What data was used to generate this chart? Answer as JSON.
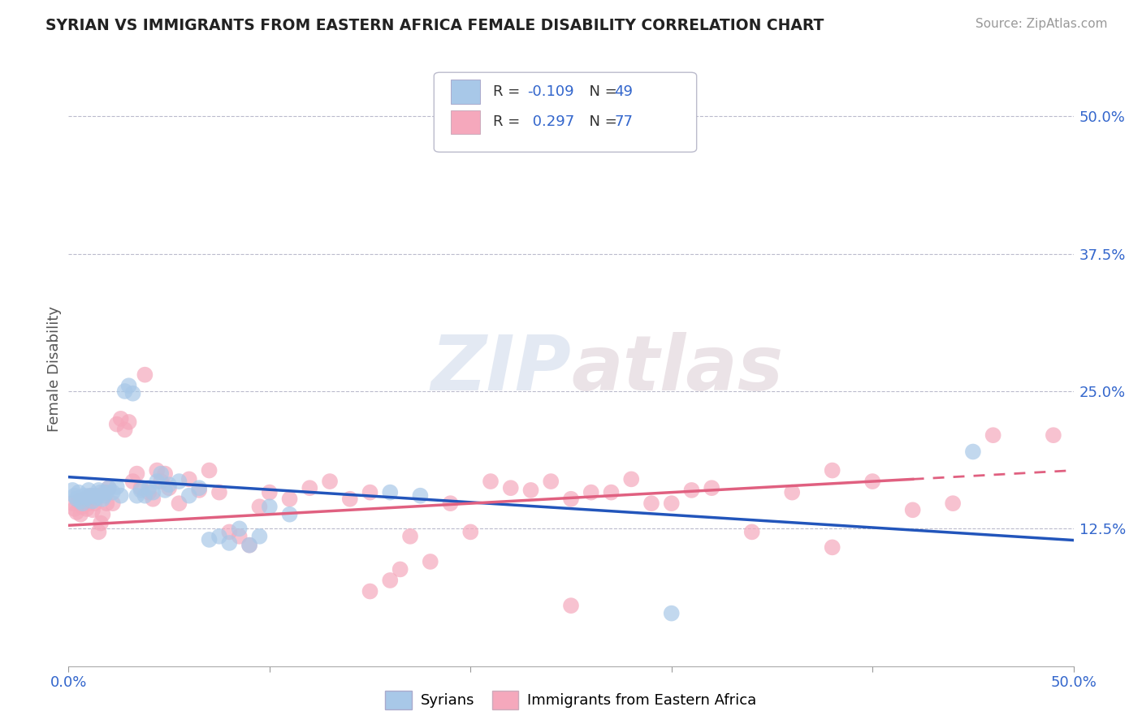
{
  "title": "SYRIAN VS IMMIGRANTS FROM EASTERN AFRICA FEMALE DISABILITY CORRELATION CHART",
  "source": "Source: ZipAtlas.com",
  "ylabel": "Female Disability",
  "xlim": [
    0.0,
    0.5
  ],
  "ylim": [
    0.0,
    0.54
  ],
  "xticks": [
    0.0,
    0.1,
    0.2,
    0.3,
    0.4,
    0.5
  ],
  "xticklabels": [
    "0.0%",
    "",
    "",
    "",
    "",
    "50.0%"
  ],
  "ytick_labels_right": [
    "50.0%",
    "37.5%",
    "25.0%",
    "12.5%"
  ],
  "ytick_vals_right": [
    0.5,
    0.375,
    0.25,
    0.125
  ],
  "syrian_color": "#a8c8e8",
  "eastern_africa_color": "#f5a8bc",
  "syrian_line_color": "#2255bb",
  "eastern_africa_line_color": "#e06080",
  "legend_R_color": "#3366cc",
  "legend_N_color": "#3366cc",
  "legend_label_color": "#333333",
  "watermark": "ZIPatlas",
  "syrian_points": [
    [
      0.002,
      0.16
    ],
    [
      0.003,
      0.155
    ],
    [
      0.004,
      0.152
    ],
    [
      0.005,
      0.158
    ],
    [
      0.006,
      0.15
    ],
    [
      0.007,
      0.148
    ],
    [
      0.008,
      0.155
    ],
    [
      0.009,
      0.153
    ],
    [
      0.01,
      0.16
    ],
    [
      0.011,
      0.155
    ],
    [
      0.012,
      0.15
    ],
    [
      0.013,
      0.155
    ],
    [
      0.014,
      0.153
    ],
    [
      0.015,
      0.16
    ],
    [
      0.016,
      0.158
    ],
    [
      0.017,
      0.152
    ],
    [
      0.018,
      0.155
    ],
    [
      0.019,
      0.158
    ],
    [
      0.02,
      0.162
    ],
    [
      0.022,
      0.158
    ],
    [
      0.024,
      0.163
    ],
    [
      0.026,
      0.155
    ],
    [
      0.028,
      0.25
    ],
    [
      0.03,
      0.255
    ],
    [
      0.032,
      0.248
    ],
    [
      0.034,
      0.155
    ],
    [
      0.036,
      0.16
    ],
    [
      0.038,
      0.155
    ],
    [
      0.04,
      0.162
    ],
    [
      0.042,
      0.158
    ],
    [
      0.044,
      0.168
    ],
    [
      0.046,
      0.175
    ],
    [
      0.048,
      0.16
    ],
    [
      0.05,
      0.165
    ],
    [
      0.055,
      0.168
    ],
    [
      0.06,
      0.155
    ],
    [
      0.065,
      0.162
    ],
    [
      0.07,
      0.115
    ],
    [
      0.075,
      0.118
    ],
    [
      0.08,
      0.112
    ],
    [
      0.085,
      0.125
    ],
    [
      0.09,
      0.11
    ],
    [
      0.095,
      0.118
    ],
    [
      0.1,
      0.145
    ],
    [
      0.11,
      0.138
    ],
    [
      0.16,
      0.158
    ],
    [
      0.175,
      0.155
    ],
    [
      0.3,
      0.048
    ],
    [
      0.45,
      0.195
    ]
  ],
  "eastern_africa_points": [
    [
      0.002,
      0.148
    ],
    [
      0.003,
      0.143
    ],
    [
      0.004,
      0.14
    ],
    [
      0.005,
      0.15
    ],
    [
      0.006,
      0.138
    ],
    [
      0.007,
      0.145
    ],
    [
      0.008,
      0.152
    ],
    [
      0.009,
      0.143
    ],
    [
      0.01,
      0.148
    ],
    [
      0.011,
      0.155
    ],
    [
      0.012,
      0.142
    ],
    [
      0.013,
      0.148
    ],
    [
      0.014,
      0.155
    ],
    [
      0.015,
      0.122
    ],
    [
      0.016,
      0.13
    ],
    [
      0.017,
      0.138
    ],
    [
      0.018,
      0.158
    ],
    [
      0.019,
      0.148
    ],
    [
      0.02,
      0.162
    ],
    [
      0.022,
      0.148
    ],
    [
      0.024,
      0.22
    ],
    [
      0.026,
      0.225
    ],
    [
      0.028,
      0.215
    ],
    [
      0.03,
      0.222
    ],
    [
      0.032,
      0.168
    ],
    [
      0.034,
      0.175
    ],
    [
      0.036,
      0.162
    ],
    [
      0.038,
      0.265
    ],
    [
      0.04,
      0.158
    ],
    [
      0.042,
      0.152
    ],
    [
      0.044,
      0.178
    ],
    [
      0.046,
      0.168
    ],
    [
      0.048,
      0.175
    ],
    [
      0.05,
      0.162
    ],
    [
      0.055,
      0.148
    ],
    [
      0.06,
      0.17
    ],
    [
      0.065,
      0.16
    ],
    [
      0.07,
      0.178
    ],
    [
      0.075,
      0.158
    ],
    [
      0.08,
      0.122
    ],
    [
      0.085,
      0.118
    ],
    [
      0.09,
      0.11
    ],
    [
      0.095,
      0.145
    ],
    [
      0.1,
      0.158
    ],
    [
      0.11,
      0.152
    ],
    [
      0.12,
      0.162
    ],
    [
      0.13,
      0.168
    ],
    [
      0.14,
      0.152
    ],
    [
      0.15,
      0.158
    ],
    [
      0.16,
      0.078
    ],
    [
      0.165,
      0.088
    ],
    [
      0.17,
      0.118
    ],
    [
      0.18,
      0.095
    ],
    [
      0.19,
      0.148
    ],
    [
      0.2,
      0.122
    ],
    [
      0.21,
      0.168
    ],
    [
      0.22,
      0.162
    ],
    [
      0.23,
      0.16
    ],
    [
      0.24,
      0.168
    ],
    [
      0.25,
      0.152
    ],
    [
      0.26,
      0.158
    ],
    [
      0.27,
      0.158
    ],
    [
      0.28,
      0.17
    ],
    [
      0.29,
      0.148
    ],
    [
      0.3,
      0.148
    ],
    [
      0.31,
      0.16
    ],
    [
      0.32,
      0.162
    ],
    [
      0.34,
      0.122
    ],
    [
      0.36,
      0.158
    ],
    [
      0.38,
      0.178
    ],
    [
      0.4,
      0.168
    ],
    [
      0.42,
      0.142
    ],
    [
      0.44,
      0.148
    ],
    [
      0.46,
      0.21
    ],
    [
      0.49,
      0.21
    ],
    [
      0.15,
      0.068
    ],
    [
      0.25,
      0.055
    ],
    [
      0.38,
      0.108
    ]
  ],
  "blue_intercept": 0.172,
  "blue_slope": -0.115,
  "pink_intercept": 0.128,
  "pink_slope": 0.1
}
